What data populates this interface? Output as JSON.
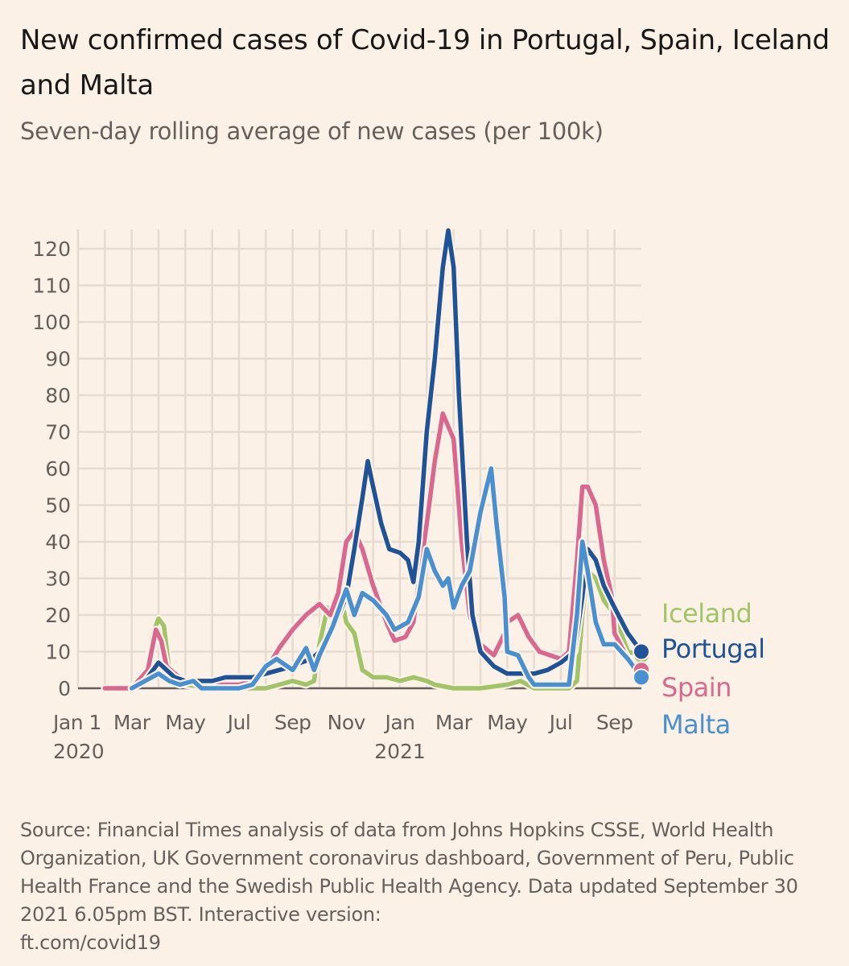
{
  "title": "New confirmed cases of Covid-19 in Portugal, Spain, Iceland and Malta",
  "subtitle": "Seven-day rolling average of new cases (per 100k)",
  "footer": {
    "source": "Source: Financial Times analysis of data from Johns Hopkins CSSE, World Health Organization, UK Government coronavirus dashboard, Government of Peru, Public Health France and the Swedish Public Health Agency.",
    "updated": "Data updated September 30 2021 6.05pm BST. Interactive version:",
    "link": "ft.com/covid19"
  },
  "chart_data": {
    "type": "line",
    "title": "New confirmed cases of Covid-19 in Portugal, Spain, Iceland and Malta",
    "ylabel": "Seven-day rolling average of new cases (per 100k)",
    "x_unit": "months since Jan 1 2020",
    "xlim": [
      0,
      21
    ],
    "ylim": [
      0,
      120
    ],
    "yticks": [
      0,
      10,
      20,
      30,
      40,
      50,
      60,
      70,
      80,
      90,
      100,
      110,
      120
    ],
    "xticks": [
      {
        "x": 0,
        "label": "Jan 1",
        "sub": "2020"
      },
      {
        "x": 2,
        "label": "Mar"
      },
      {
        "x": 4,
        "label": "May"
      },
      {
        "x": 6,
        "label": "Jul"
      },
      {
        "x": 8,
        "label": "Sep"
      },
      {
        "x": 10,
        "label": "Nov"
      },
      {
        "x": 12,
        "label": "Jan",
        "sub": "2021"
      },
      {
        "x": 14,
        "label": "Mar"
      },
      {
        "x": 16,
        "label": "May"
      },
      {
        "x": 18,
        "label": "Jul"
      },
      {
        "x": 20,
        "label": "Sep"
      }
    ],
    "grid": true,
    "legend_placement": "right (direct labels)",
    "series": [
      {
        "name": "Iceland",
        "color": "#a2c468",
        "x": [
          2,
          2.5,
          2.8,
          3,
          3.2,
          3.4,
          3.7,
          4,
          5,
          6,
          7,
          7.5,
          8,
          8.5,
          8.8,
          9,
          9.3,
          9.6,
          9.8,
          10,
          10.3,
          10.6,
          11,
          11.5,
          12,
          12.5,
          13,
          13.3,
          14,
          15,
          16,
          16.5,
          17,
          18,
          18.3,
          18.6,
          18.8,
          19,
          19.3,
          19.6,
          20,
          20.5,
          21
        ],
        "y": [
          0,
          3,
          15,
          19,
          17,
          5,
          2,
          1,
          0,
          0,
          0,
          1,
          2,
          1,
          2,
          12,
          22,
          18,
          25,
          18,
          15,
          5,
          3,
          3,
          2,
          3,
          2,
          1,
          0,
          0,
          1,
          2,
          0,
          0,
          0,
          2,
          20,
          32,
          30,
          24,
          20,
          10,
          9
        ]
      },
      {
        "name": "Portugal",
        "color": "#1f5395",
        "x": [
          2,
          2.5,
          3,
          3.3,
          3.6,
          4,
          5,
          5.5,
          6,
          6.5,
          7,
          7.5,
          8,
          8.3,
          8.7,
          9,
          9.5,
          10,
          10.3,
          10.6,
          10.8,
          11,
          11.3,
          11.6,
          12,
          12.3,
          12.5,
          12.7,
          13,
          13.3,
          13.6,
          13.8,
          14,
          14.2,
          14.5,
          14.7,
          15,
          15.5,
          16,
          16.5,
          17,
          17.5,
          18,
          18.5,
          18.8,
          19,
          19.3,
          19.6,
          20,
          20.5,
          21
        ],
        "y": [
          0,
          2,
          7,
          5,
          3,
          2,
          2,
          3,
          3,
          3,
          4,
          5,
          6,
          7,
          8,
          10,
          16,
          25,
          38,
          52,
          62,
          55,
          45,
          38,
          37,
          35,
          29,
          40,
          70,
          90,
          115,
          125,
          115,
          80,
          40,
          20,
          10,
          6,
          4,
          4,
          4,
          5,
          7,
          10,
          25,
          38,
          35,
          28,
          22,
          15,
          10
        ]
      },
      {
        "name": "Spain",
        "color": "#d9688e",
        "x": [
          1,
          2,
          2.6,
          2.9,
          3.1,
          3.3,
          3.6,
          4,
          5,
          6,
          6.5,
          7,
          7.5,
          8,
          8.5,
          9,
          9.4,
          9.7,
          10,
          10.3,
          10.6,
          11,
          11.5,
          11.8,
          12.2,
          12.5,
          13,
          13.3,
          13.6,
          14,
          14.3,
          14.6,
          15,
          15.5,
          15.9,
          16,
          16.4,
          16.8,
          17.2,
          17.6,
          18,
          18.3,
          18.6,
          18.8,
          19,
          19.3,
          19.6,
          19.9,
          20,
          20.5,
          21
        ],
        "y": [
          0,
          0,
          5,
          16,
          13,
          6,
          4,
          2,
          1,
          1,
          2,
          5,
          11,
          16,
          20,
          23,
          20,
          26,
          40,
          43,
          38,
          28,
          18,
          13,
          14,
          18,
          45,
          62,
          75,
          68,
          40,
          20,
          12,
          9,
          15,
          18,
          20,
          14,
          10,
          9,
          8,
          10,
          35,
          55,
          55,
          50,
          35,
          25,
          15,
          8,
          5
        ]
      },
      {
        "name": "Malta",
        "color": "#4a90cf",
        "x": [
          2,
          2.5,
          3,
          3.4,
          3.8,
          4.3,
          4.6,
          5,
          6,
          6.5,
          7,
          7.4,
          7.8,
          8,
          8.5,
          8.8,
          9,
          9.5,
          10,
          10.3,
          10.6,
          11,
          11.5,
          11.8,
          12.3,
          12.7,
          13,
          13.3,
          13.6,
          13.8,
          14,
          14.3,
          14.6,
          15,
          15.4,
          15.6,
          15.9,
          16,
          16.4,
          16.8,
          17,
          18,
          18.3,
          18.6,
          18.8,
          19,
          19.3,
          19.6,
          20,
          20.5,
          21
        ],
        "y": [
          0,
          2,
          4,
          2,
          1,
          2,
          0,
          0,
          0,
          1,
          6,
          8,
          6,
          5,
          11,
          5,
          9,
          17,
          27,
          20,
          26,
          24,
          20,
          16,
          18,
          25,
          38,
          32,
          28,
          30,
          22,
          28,
          32,
          48,
          60,
          45,
          25,
          10,
          9,
          3,
          1,
          1,
          1,
          20,
          40,
          32,
          18,
          12,
          12,
          8,
          3
        ]
      }
    ]
  }
}
